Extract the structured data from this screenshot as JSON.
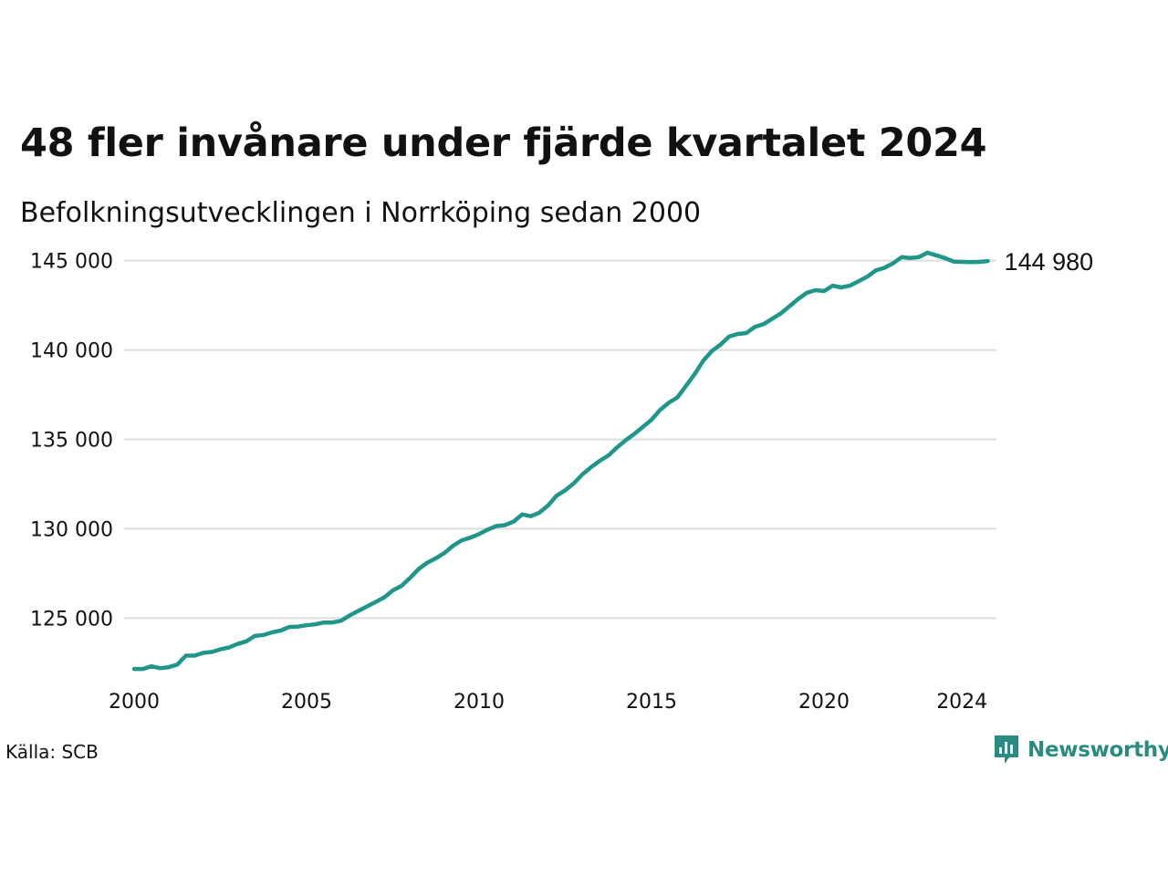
{
  "title": "48 fler invånare under fjärde kvartalet 2024",
  "subtitle": "Befolkningsutvecklingen i Norrköping sedan 2000",
  "source": "Källa: SCB",
  "brand": "Newsworthy",
  "colors": {
    "line": "#20968a",
    "grid": "#dddddd",
    "brand": "#2a8c80"
  },
  "chart_data": {
    "type": "line",
    "title": "48 fler invånare under fjärde kvartalet 2024",
    "subtitle": "Befolkningsutvecklingen i Norrköping sedan 2000",
    "xlabel": "",
    "ylabel": "",
    "x_ticks": [
      2000,
      2005,
      2010,
      2015,
      2020,
      2024
    ],
    "y_ticks": [
      125000,
      130000,
      135000,
      140000,
      145000
    ],
    "y_tick_labels": [
      "125 000",
      "130 000",
      "135 000",
      "140 000",
      "145 000"
    ],
    "xlim": [
      2000,
      2024.75
    ],
    "ylim": [
      121800,
      145800
    ],
    "grid": "horizontal",
    "end_label": "144 980",
    "series": [
      {
        "x": [
          2000.0,
          2000.25,
          2000.5,
          2000.75,
          2001.0,
          2001.25,
          2001.5,
          2001.75,
          2002.0,
          2002.25,
          2002.5,
          2002.75,
          2003.0,
          2003.25,
          2003.5,
          2003.75,
          2004.0,
          2004.25,
          2004.5,
          2004.75,
          2005.0,
          2005.25,
          2005.5,
          2005.75,
          2006.0,
          2006.25,
          2006.5,
          2006.75,
          2007.0,
          2007.25,
          2007.5,
          2007.75,
          2008.0,
          2008.25,
          2008.5,
          2008.75,
          2009.0,
          2009.25,
          2009.5,
          2009.75,
          2010.0,
          2010.25,
          2010.5,
          2010.75,
          2011.0,
          2011.25,
          2011.5,
          2011.75,
          2012.0,
          2012.25,
          2012.5,
          2012.75,
          2013.0,
          2013.25,
          2013.5,
          2013.75,
          2014.0,
          2014.25,
          2014.5,
          2014.75,
          2015.0,
          2015.25,
          2015.5,
          2015.75,
          2016.0,
          2016.25,
          2016.5,
          2016.75,
          2017.0,
          2017.25,
          2017.5,
          2017.75,
          2018.0,
          2018.25,
          2018.5,
          2018.75,
          2019.0,
          2019.25,
          2019.5,
          2019.75,
          2020.0,
          2020.25,
          2020.5,
          2020.75,
          2021.0,
          2021.25,
          2021.5,
          2021.75,
          2022.0,
          2022.25,
          2022.5,
          2022.75,
          2023.0,
          2023.25,
          2023.5,
          2023.75,
          2024.0,
          2024.25,
          2024.5,
          2024.75
        ],
        "values": [
          122150,
          122150,
          122300,
          122200,
          122250,
          122400,
          122900,
          122900,
          123050,
          123100,
          123250,
          123350,
          123550,
          123700,
          124000,
          124050,
          124200,
          124300,
          124500,
          124520,
          124600,
          124650,
          124750,
          124750,
          124850,
          125150,
          125400,
          125650,
          125900,
          126150,
          126550,
          126800,
          127250,
          127750,
          128100,
          128350,
          128650,
          129050,
          129350,
          129500,
          129700,
          129950,
          130150,
          130200,
          130400,
          130800,
          130700,
          130900,
          131300,
          131850,
          132150,
          132550,
          133050,
          133450,
          133800,
          134100,
          134550,
          134950,
          135300,
          135700,
          136100,
          136650,
          137050,
          137350,
          138000,
          138650,
          139400,
          139950,
          140300,
          140750,
          140900,
          140950,
          141300,
          141450,
          141750,
          142050,
          142450,
          142850,
          143200,
          143350,
          143300,
          143600,
          143500,
          143600,
          143850,
          144100,
          144450,
          144600,
          144850,
          145200,
          145150,
          145200,
          145450,
          145300,
          145150,
          144950,
          144930,
          144920,
          144932,
          144980
        ]
      }
    ]
  }
}
